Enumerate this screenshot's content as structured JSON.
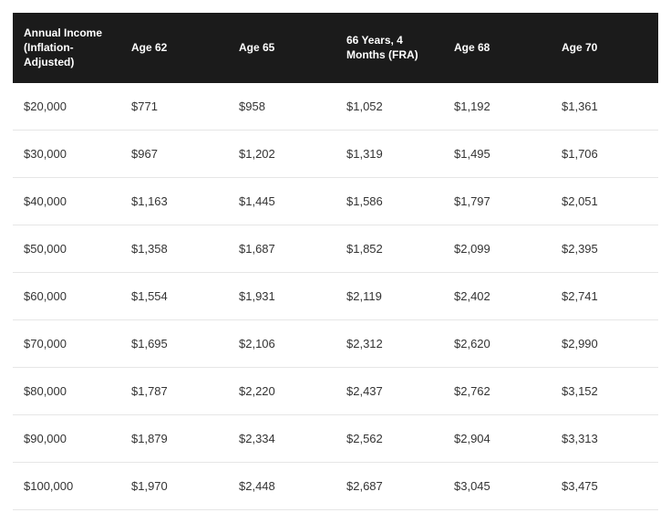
{
  "table": {
    "type": "table",
    "header_bg": "#1b1b1b",
    "header_text_color": "#ffffff",
    "row_border_color": "#e6e6e6",
    "cell_text_color": "#333333",
    "header_fontsize_pt": 9,
    "cell_fontsize_pt": 10,
    "columns": [
      "Annual Income (Inflation-Adjusted)",
      "Age 62",
      "Age 65",
      "66 Years, 4 Months (FRA)",
      "Age 68",
      "Age 70"
    ],
    "rows": [
      [
        "$20,000",
        "$771",
        "$958",
        "$1,052",
        "$1,192",
        "$1,361"
      ],
      [
        "$30,000",
        "$967",
        "$1,202",
        "$1,319",
        "$1,495",
        "$1,706"
      ],
      [
        "$40,000",
        "$1,163",
        "$1,445",
        "$1,586",
        "$1,797",
        "$2,051"
      ],
      [
        "$50,000",
        "$1,358",
        "$1,687",
        "$1,852",
        "$2,099",
        "$2,395"
      ],
      [
        "$60,000",
        "$1,554",
        "$1,931",
        "$2,119",
        "$2,402",
        "$2,741"
      ],
      [
        "$70,000",
        "$1,695",
        "$2,106",
        "$2,312",
        "$2,620",
        "$2,990"
      ],
      [
        "$80,000",
        "$1,787",
        "$2,220",
        "$2,437",
        "$2,762",
        "$3,152"
      ],
      [
        "$90,000",
        "$1,879",
        "$2,334",
        "$2,562",
        "$2,904",
        "$3,313"
      ],
      [
        "$100,000",
        "$1,970",
        "$2,448",
        "$2,687",
        "$3,045",
        "$3,475"
      ]
    ]
  }
}
